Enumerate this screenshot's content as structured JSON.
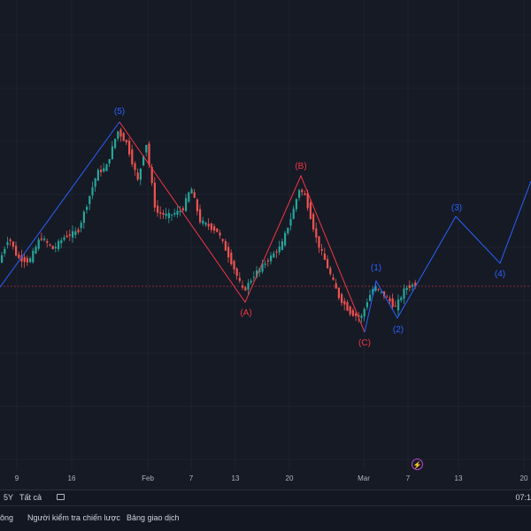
{
  "xaxis": {
    "ticks": [
      "9",
      "16",
      "Feb",
      "7",
      "13",
      "20",
      "Mar",
      "7",
      "13",
      "20"
    ]
  },
  "wave_labels": [
    "(5)",
    "(A)",
    "(B)",
    "(C)",
    "(1)",
    "(2)",
    "(3)",
    "(4)"
  ],
  "toolbar": {
    "range_5y": "5Y",
    "range_all": "Tất cả",
    "time": "07:1"
  },
  "tabs": {
    "tab1": "ông",
    "tab2": "Người kiểm tra chiến lược",
    "tab3": "Bảng giao dịch"
  },
  "colors": {
    "up": "#26a69a",
    "down": "#ef5350",
    "impulse_wave": "#2962ff",
    "corrective_wave": "#f23645",
    "price_line": "#f23645",
    "background": "#161a25"
  },
  "icons": {
    "alert": "lightning-icon",
    "calendar": "calendar-range-icon"
  }
}
